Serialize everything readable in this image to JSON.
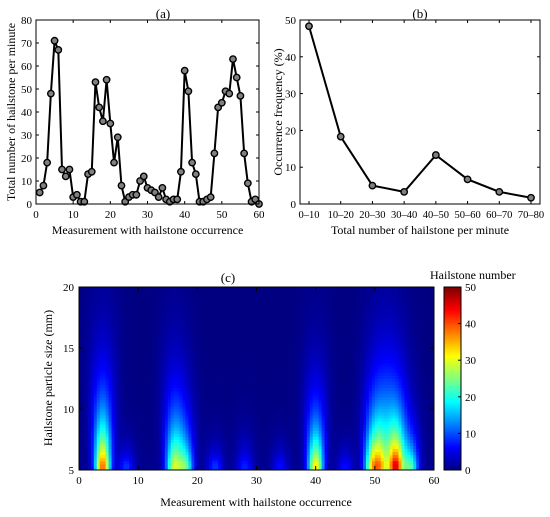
{
  "chart_data": [
    {
      "type": "line",
      "panel_label": "(a)",
      "xlabel": "Measurement with hailstone occurrence",
      "ylabel": "Total number of hailstone per minute",
      "xlim": [
        0,
        60
      ],
      "ylim": [
        0,
        80
      ],
      "xticks": [
        0,
        10,
        20,
        30,
        40,
        50,
        60
      ],
      "yticks": [
        0,
        10,
        20,
        30,
        40,
        50,
        60,
        70,
        80
      ],
      "grid": false,
      "marker": "circle",
      "marker_fill": "#808080",
      "line_color": "#000000",
      "series": [
        {
          "x": [
            1,
            2,
            3,
            4,
            5,
            6,
            7,
            8,
            9,
            10,
            11,
            12,
            13,
            14,
            15,
            16,
            17,
            18,
            19,
            20,
            21,
            22,
            23,
            24,
            25,
            26,
            27,
            28,
            29,
            30,
            31,
            32,
            33,
            34,
            35,
            36,
            37,
            38,
            39,
            40,
            41,
            42,
            43,
            44,
            45,
            46,
            47,
            48,
            49,
            50,
            51,
            52,
            53,
            54,
            55,
            56,
            57,
            58,
            59,
            60
          ],
          "values": [
            5,
            8,
            18,
            48,
            71,
            67,
            15,
            12,
            15,
            3,
            4,
            1,
            1,
            13,
            14,
            53,
            42,
            36,
            54,
            35,
            18,
            29,
            8,
            1,
            3,
            4,
            4,
            10,
            12,
            7,
            6,
            5,
            3,
            7,
            2,
            1,
            2,
            2,
            14,
            58,
            49,
            18,
            13,
            1,
            1,
            2,
            3,
            22,
            42,
            44,
            49,
            48,
            63,
            55,
            47,
            22,
            9,
            1,
            2,
            0
          ]
        }
      ]
    },
    {
      "type": "line",
      "panel_label": "(b)",
      "xlabel": "Total number of hailstone per minute",
      "ylabel": "Occurrence frequency (%)",
      "ylim": [
        0,
        50
      ],
      "yticks": [
        0,
        10,
        20,
        30,
        40,
        50
      ],
      "categories": [
        "0–10",
        "10–20",
        "20–30",
        "30–40",
        "40–50",
        "50–60",
        "60–70",
        "70–80"
      ],
      "grid": false,
      "marker": "circle",
      "marker_fill": "#808080",
      "line_color": "#000000",
      "series": [
        {
          "values": [
            48.3,
            18.3,
            5.0,
            3.3,
            13.3,
            6.7,
            3.3,
            1.7
          ]
        }
      ]
    },
    {
      "type": "heatmap",
      "panel_label": "(c)",
      "xlabel": "Measurement with hailstone occurrence",
      "ylabel": "Hailstone particle size (mm)",
      "xlim": [
        0,
        60
      ],
      "ylim": [
        5,
        20
      ],
      "xticks": [
        0,
        10,
        20,
        30,
        40,
        50,
        60
      ],
      "yticks": [
        5,
        10,
        15,
        20
      ],
      "colorbar": {
        "label": "Hailstone number",
        "min": 0,
        "max": 50,
        "ticks": [
          0,
          10,
          20,
          30,
          40,
          50
        ],
        "colormap": "jet"
      },
      "hotspots": [
        {
          "x": 4,
          "peak_y": 5.5,
          "height_mm": 9.5,
          "intensity": 38
        },
        {
          "x": 16,
          "peak_y": 5.5,
          "height_mm": 9,
          "intensity": 26
        },
        {
          "x": 18,
          "peak_y": 5.5,
          "height_mm": 6,
          "intensity": 22
        },
        {
          "x": 40,
          "peak_y": 5.5,
          "height_mm": 8,
          "intensity": 32
        },
        {
          "x": 49.5,
          "peak_y": 5.5,
          "height_mm": 7,
          "intensity": 26
        },
        {
          "x": 51,
          "peak_y": 5.5,
          "height_mm": 9,
          "intensity": 28
        },
        {
          "x": 53.5,
          "peak_y": 5.5,
          "height_mm": 8,
          "intensity": 44
        },
        {
          "x": 56,
          "peak_y": 5.5,
          "height_mm": 5,
          "intensity": 22
        },
        {
          "x": 8,
          "peak_y": 5.5,
          "height_mm": 3,
          "intensity": 8
        },
        {
          "x": 23,
          "peak_y": 5.5,
          "height_mm": 3,
          "intensity": 8
        },
        {
          "x": 28,
          "peak_y": 5.5,
          "height_mm": 4,
          "intensity": 7
        },
        {
          "x": 34,
          "peak_y": 5.5,
          "height_mm": 3,
          "intensity": 6
        },
        {
          "x": 45,
          "peak_y": 5.5,
          "height_mm": 3,
          "intensity": 6
        }
      ]
    }
  ]
}
